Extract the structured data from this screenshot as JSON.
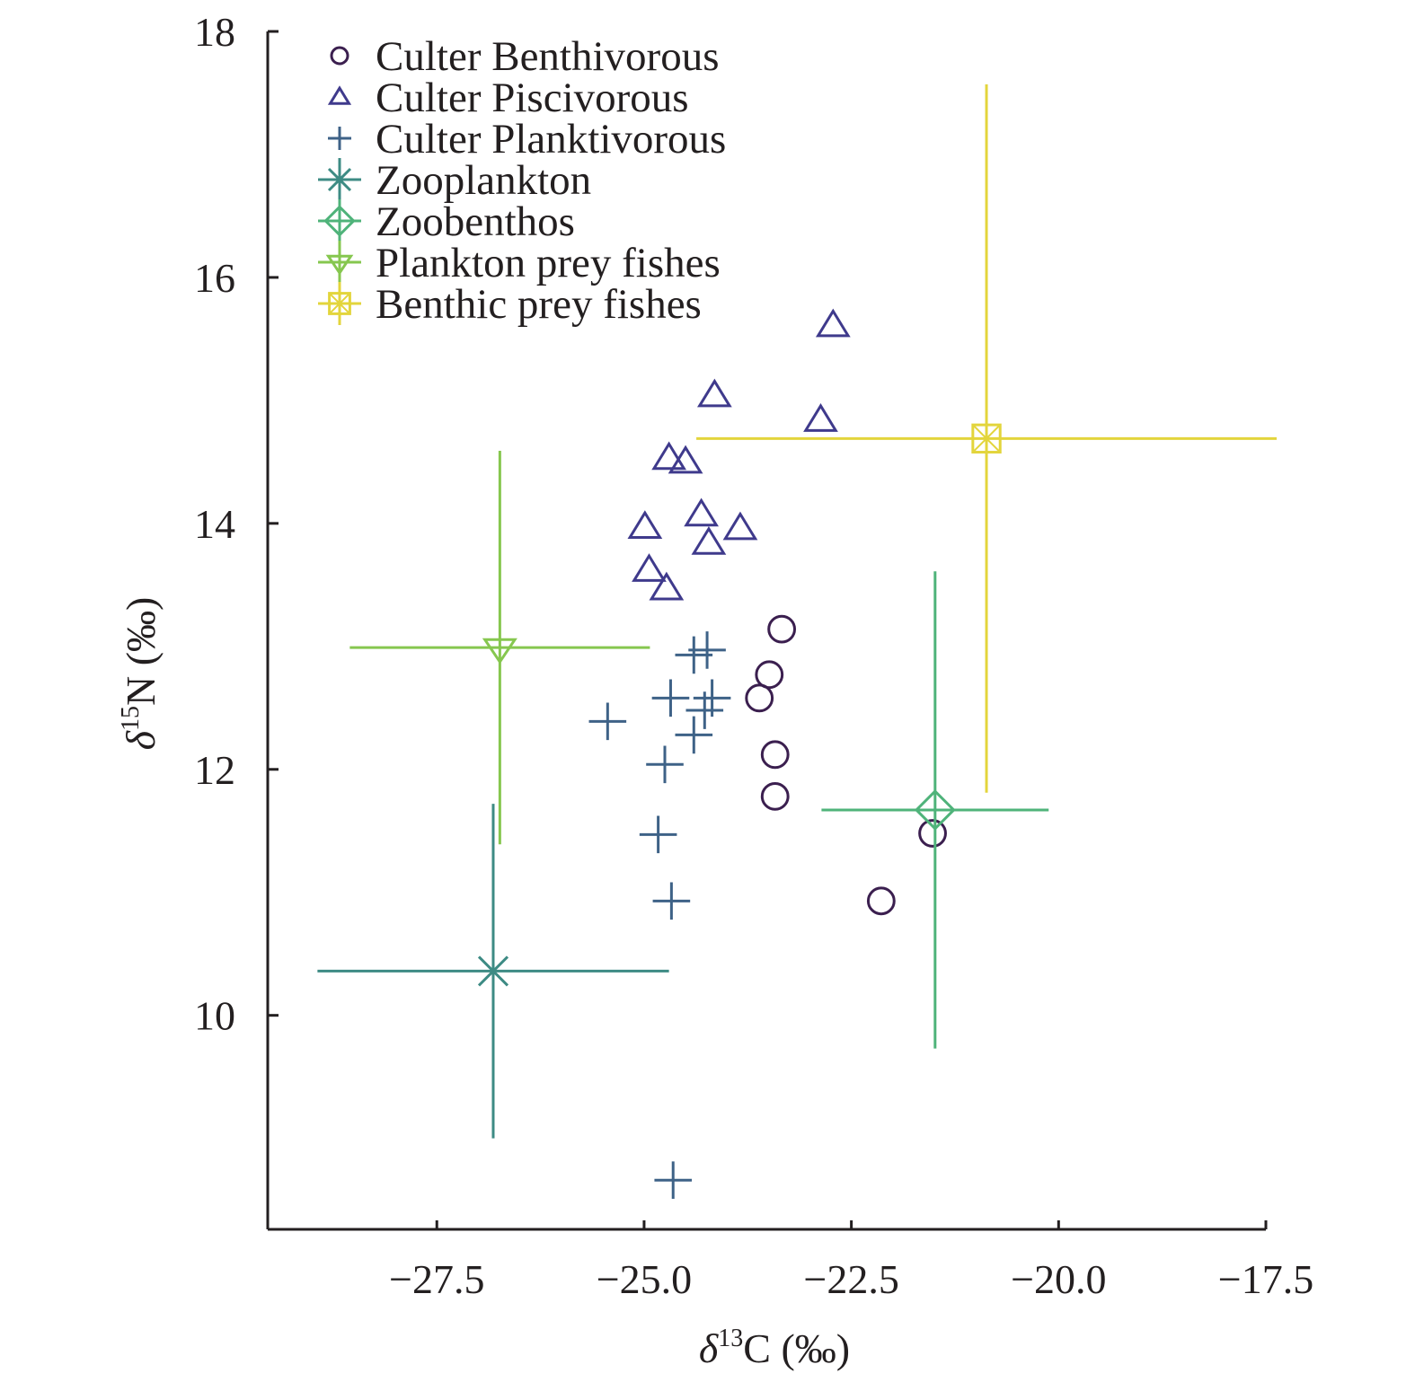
{
  "chart_data": {
    "type": "scatter",
    "xlabel": {
      "prefix": "δ",
      "sup": "13",
      "suffix": "C (‰)"
    },
    "ylabel": {
      "prefix": "δ",
      "sup": "15",
      "suffix": "N (‰)"
    },
    "xlim": [
      -29.54,
      -17.5
    ],
    "ylim": [
      8.26,
      18
    ],
    "xticks": [
      -27.5,
      -25.0,
      -22.5,
      -20.0,
      -17.5
    ],
    "xtick_labels": [
      "−27.5",
      "−25.0",
      "−22.5",
      "−20.0",
      "−17.5"
    ],
    "yticks": [
      10,
      12,
      14,
      16,
      18
    ],
    "ytick_labels": [
      "10",
      "12",
      "14",
      "16",
      "18"
    ],
    "grid": false,
    "legend_position": "top-left",
    "series": [
      {
        "name": "Culter Benthivorous",
        "marker": "circle",
        "color": "#3b1f4f",
        "points": [
          {
            "x": -23.34,
            "y": 13.14
          },
          {
            "x": -23.49,
            "y": 12.77
          },
          {
            "x": -23.61,
            "y": 12.58
          },
          {
            "x": -23.42,
            "y": 12.12
          },
          {
            "x": -23.42,
            "y": 11.78
          },
          {
            "x": -21.52,
            "y": 11.48
          },
          {
            "x": -22.14,
            "y": 10.93
          }
        ]
      },
      {
        "name": "Culter Piscivorous",
        "marker": "triangle-up",
        "color": "#3f3a8c",
        "points": [
          {
            "x": -22.72,
            "y": 15.61
          },
          {
            "x": -24.15,
            "y": 15.04
          },
          {
            "x": -22.87,
            "y": 14.84
          },
          {
            "x": -24.7,
            "y": 14.53
          },
          {
            "x": -24.5,
            "y": 14.5
          },
          {
            "x": -24.99,
            "y": 13.97
          },
          {
            "x": -24.31,
            "y": 14.07
          },
          {
            "x": -23.84,
            "y": 13.96
          },
          {
            "x": -24.22,
            "y": 13.84
          },
          {
            "x": -24.94,
            "y": 13.62
          },
          {
            "x": -24.73,
            "y": 13.47
          }
        ]
      },
      {
        "name": "Culter Planktivorous",
        "marker": "plus",
        "color": "#3e6287",
        "points": [
          {
            "x": -24.4,
            "y": 12.93
          },
          {
            "x": -24.24,
            "y": 12.97
          },
          {
            "x": -25.44,
            "y": 12.39
          },
          {
            "x": -24.68,
            "y": 12.58
          },
          {
            "x": -24.18,
            "y": 12.58
          },
          {
            "x": -24.27,
            "y": 12.48
          },
          {
            "x": -24.4,
            "y": 12.28
          },
          {
            "x": -24.75,
            "y": 12.04
          },
          {
            "x": -24.83,
            "y": 11.47
          },
          {
            "x": -24.67,
            "y": 10.93
          },
          {
            "x": -24.65,
            "y": 8.66
          }
        ]
      },
      {
        "name": "Zooplankton",
        "marker": "asterisk",
        "color": "#3d8b84",
        "errorbar": true,
        "points": [
          {
            "x": -26.82,
            "y": 10.36,
            "xerr": 2.12,
            "yerr": 1.36
          }
        ]
      },
      {
        "name": "Zoobenthos",
        "marker": "diamond",
        "color": "#4fb37a",
        "errorbar": true,
        "points": [
          {
            "x": -21.49,
            "y": 11.67,
            "xerr": 1.37,
            "yerr": 1.94
          }
        ]
      },
      {
        "name": "Plankton prey fishes",
        "marker": "triangle-down",
        "color": "#86c74f",
        "errorbar": true,
        "points": [
          {
            "x": -26.74,
            "y": 12.99,
            "xerr": 1.81,
            "yerr": 1.6
          }
        ]
      },
      {
        "name": "Benthic prey fishes",
        "marker": "square-x",
        "color": "#e3d53c",
        "errorbar": true,
        "points": [
          {
            "x": -20.87,
            "y": 14.69,
            "xerr": 3.5,
            "yerr": 2.88
          }
        ]
      }
    ]
  }
}
